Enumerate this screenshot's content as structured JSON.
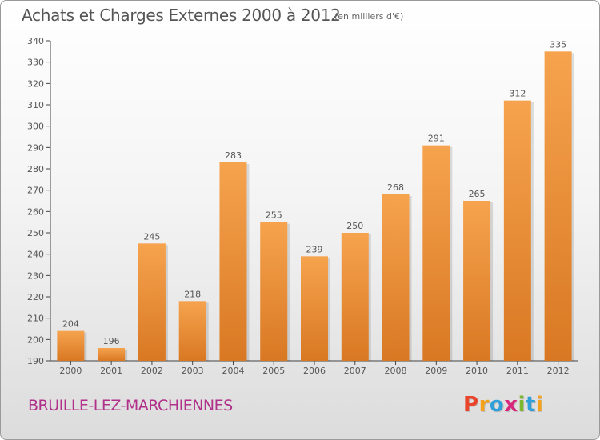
{
  "header": {
    "title": "Achats et Charges Externes 2000 à 2012",
    "subtitle": "(en milliers d'€)"
  },
  "footer": {
    "commune": "BRUILLE-LEZ-MARCHIENNES",
    "logo": {
      "letters": [
        "P",
        "r",
        "o",
        "x",
        "i",
        "t",
        "i"
      ]
    }
  },
  "colors": {
    "bar_top": "#f6a34e",
    "bar_bottom": "#d97823",
    "text": "#555555",
    "commune": "#b0308a",
    "logo": [
      "#e8452c",
      "#f4a21e",
      "#2e9fd8",
      "#d6297e",
      "#7cb82f",
      "#2e9fd8",
      "#f4a21e"
    ]
  },
  "chart_data": {
    "type": "bar",
    "title": "Achats et Charges Externes 2000 à 2012",
    "subtitle": "(en milliers d'€)",
    "categories": [
      "2000",
      "2001",
      "2002",
      "2003",
      "2004",
      "2005",
      "2006",
      "2007",
      "2008",
      "2009",
      "2010",
      "2011",
      "2012"
    ],
    "values": [
      204,
      196,
      245,
      218,
      283,
      255,
      239,
      250,
      268,
      291,
      265,
      312,
      335
    ],
    "ylim": [
      190,
      340
    ],
    "yticks": [
      190,
      200,
      210,
      220,
      230,
      240,
      250,
      260,
      270,
      280,
      290,
      300,
      310,
      320,
      330,
      340
    ],
    "grid": false,
    "legend": "none",
    "data_labels": true
  }
}
